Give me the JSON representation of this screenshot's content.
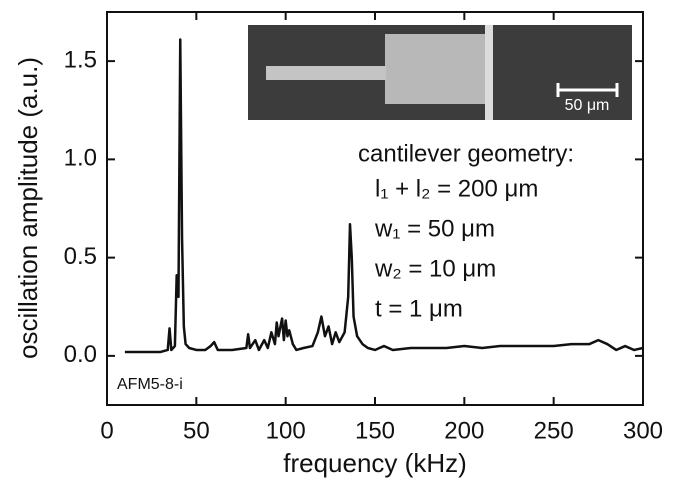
{
  "chart_data": {
    "type": "line",
    "x_label": "frequency (kHz)",
    "y_label": "oscillation amplitude (a.u.)",
    "xlim": [
      0,
      300
    ],
    "ylim": [
      -0.25,
      1.75
    ],
    "xticks": [
      0,
      50,
      100,
      150,
      200,
      250,
      300
    ],
    "yticks": [
      {
        "value": 0,
        "label": "0.0"
      },
      0.5,
      {
        "value": 1,
        "label": "1.0"
      },
      1.5
    ],
    "color": "#111111",
    "sample_label": "AFM5-8-i",
    "geometry_title": "cantilever geometry:",
    "geometry_lines": [
      "l₁ + l₂ = 200 μm",
      "w₁ = 50 μm",
      "w₂ = 10 μm",
      "t = 1 μm"
    ],
    "inset_scale_label": "50 μm",
    "x": [
      10,
      20,
      30,
      34,
      35,
      36,
      38,
      39,
      40,
      41,
      42,
      43,
      44,
      46,
      50,
      55,
      58,
      60,
      62,
      70,
      78,
      79,
      80,
      83,
      85,
      88,
      90,
      92,
      94,
      95,
      96,
      98,
      99,
      100,
      101,
      102,
      104,
      106,
      110,
      115,
      118,
      120,
      122,
      124,
      126,
      128,
      130,
      133,
      135,
      136,
      137,
      138,
      140,
      143,
      146,
      150,
      155,
      160,
      170,
      180,
      190,
      200,
      210,
      220,
      230,
      240,
      250,
      260,
      270,
      275,
      280,
      285,
      290,
      295,
      300
    ],
    "values": [
      0.02,
      0.02,
      0.02,
      0.03,
      0.14,
      0.03,
      0.05,
      0.41,
      0.3,
      1.61,
      0.6,
      0.15,
      0.06,
      0.04,
      0.03,
      0.03,
      0.05,
      0.07,
      0.03,
      0.03,
      0.04,
      0.11,
      0.04,
      0.08,
      0.03,
      0.08,
      0.04,
      0.12,
      0.06,
      0.17,
      0.1,
      0.19,
      0.08,
      0.18,
      0.1,
      0.13,
      0.06,
      0.03,
      0.04,
      0.05,
      0.12,
      0.2,
      0.1,
      0.15,
      0.06,
      0.12,
      0.07,
      0.12,
      0.3,
      0.67,
      0.5,
      0.2,
      0.1,
      0.06,
      0.04,
      0.03,
      0.05,
      0.03,
      0.04,
      0.04,
      0.04,
      0.05,
      0.04,
      0.05,
      0.05,
      0.05,
      0.05,
      0.06,
      0.06,
      0.08,
      0.06,
      0.03,
      0.05,
      0.03,
      0.04
    ]
  }
}
